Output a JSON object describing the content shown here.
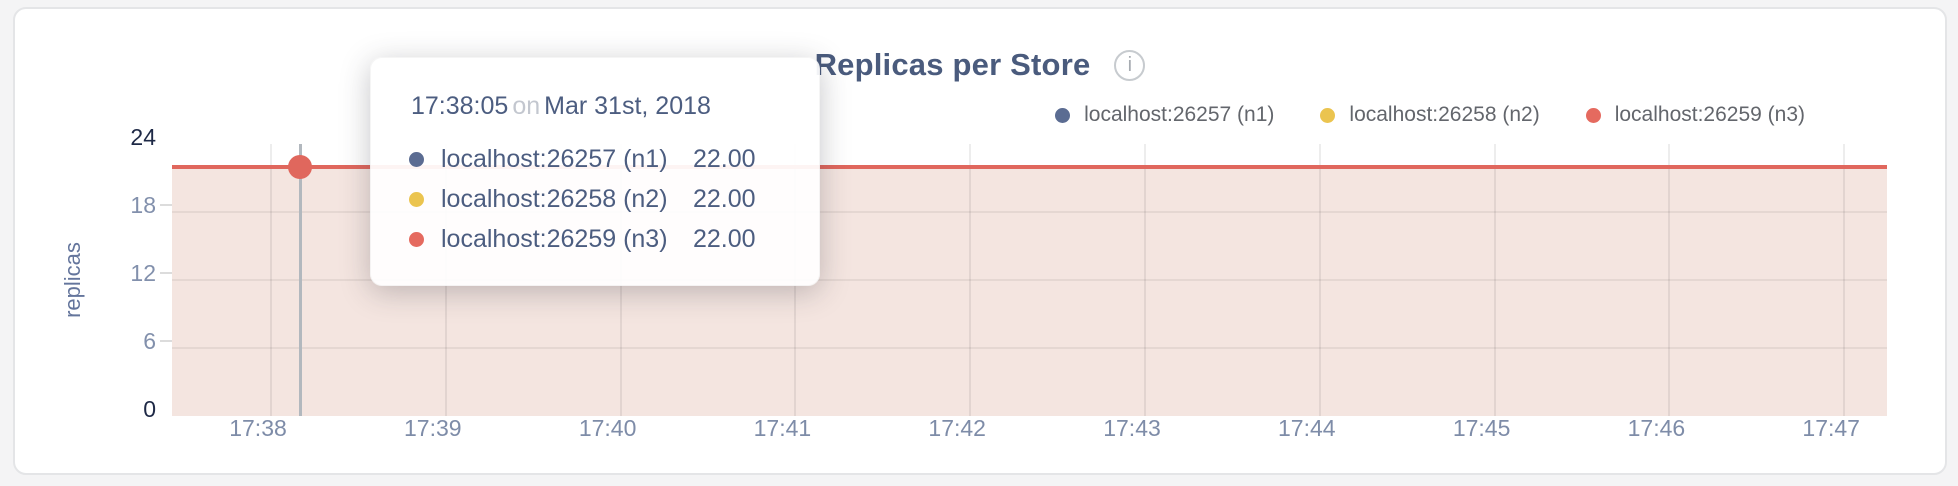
{
  "header": {
    "title": "Replicas per Store",
    "info_label": "i"
  },
  "legend": {
    "items": [
      {
        "label": "localhost:26257 (n1)",
        "color": "#5b6c92"
      },
      {
        "label": "localhost:26258 (n2)",
        "color": "#ebc44f"
      },
      {
        "label": "localhost:26259 (n3)",
        "color": "#e56a5f"
      }
    ]
  },
  "tooltip": {
    "time": "17:38:05",
    "connector": "on",
    "date": "Mar 31st, 2018",
    "rows": [
      {
        "label": "localhost:26257 (n1)",
        "value": "22.00",
        "color": "#5b6c92"
      },
      {
        "label": "localhost:26258 (n2)",
        "value": "22.00",
        "color": "#ebc44f"
      },
      {
        "label": "localhost:26259 (n3)",
        "value": "22.00",
        "color": "#e56a5f"
      }
    ]
  },
  "y_axis": {
    "label": "replicas",
    "ticks": [
      {
        "label": "24",
        "strong": true
      },
      {
        "label": "18",
        "strong": false
      },
      {
        "label": "12",
        "strong": false
      },
      {
        "label": "6",
        "strong": false
      },
      {
        "label": "0",
        "strong": true
      }
    ]
  },
  "x_axis": {
    "ticks": [
      "17:38",
      "17:39",
      "17:40",
      "17:41",
      "17:42",
      "17:43",
      "17:44",
      "17:45",
      "17:46",
      "17:47"
    ]
  },
  "chart_data": {
    "type": "area",
    "title": "Replicas per Store",
    "xlabel": "",
    "ylabel": "replicas",
    "x": [
      "17:38",
      "17:39",
      "17:40",
      "17:41",
      "17:42",
      "17:43",
      "17:44",
      "17:45",
      "17:46",
      "17:47"
    ],
    "ylim": [
      0,
      24
    ],
    "y_ticks": [
      0,
      6,
      12,
      18,
      24
    ],
    "grid": true,
    "legend_position": "top-right",
    "series": [
      {
        "name": "localhost:26257 (n1)",
        "color": "#5b6c92",
        "values": [
          22,
          22,
          22,
          22,
          22,
          22,
          22,
          22,
          22,
          22
        ]
      },
      {
        "name": "localhost:26258 (n2)",
        "color": "#ebc44f",
        "values": [
          22,
          22,
          22,
          22,
          22,
          22,
          22,
          22,
          22,
          22
        ]
      },
      {
        "name": "localhost:26259 (n3)",
        "color": "#e56a5f",
        "values": [
          22,
          22,
          22,
          22,
          22,
          22,
          22,
          22,
          22,
          22
        ]
      }
    ],
    "line_color": "#e0675d",
    "fill_color": "#f4e5e0",
    "hover": {
      "time": "17:38:05",
      "date": "Mar 31st, 2018",
      "value": 22.0
    }
  }
}
